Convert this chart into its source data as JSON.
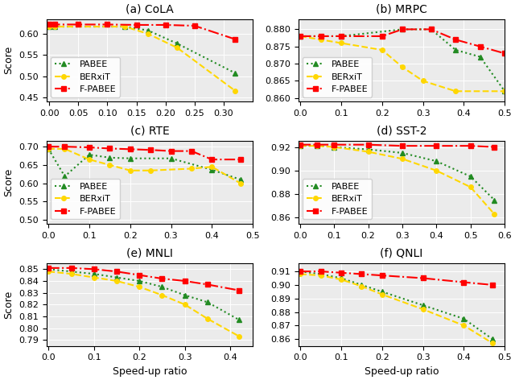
{
  "subplots": [
    {
      "title": "(a) CoLA",
      "xlim": [
        -0.005,
        0.35
      ],
      "ylim": [
        0.44,
        0.635
      ],
      "xticks": [
        0.0,
        0.05,
        0.1,
        0.15,
        0.2,
        0.25,
        0.3
      ],
      "yticks": [
        0.45,
        0.5,
        0.55,
        0.6
      ],
      "ylabel": "Score",
      "show_legend": true,
      "xlabel": null,
      "pabee_x": [
        0.0,
        0.01,
        0.13,
        0.17,
        0.22,
        0.32
      ],
      "pabee_y": [
        0.618,
        0.617,
        0.617,
        0.608,
        0.577,
        0.507
      ],
      "berxit_x": [
        0.0,
        0.01,
        0.13,
        0.17,
        0.22,
        0.32
      ],
      "berxit_y": [
        0.618,
        0.617,
        0.617,
        0.6,
        0.567,
        0.465
      ],
      "fpabee_x": [
        0.0,
        0.01,
        0.05,
        0.1,
        0.15,
        0.2,
        0.25,
        0.32
      ],
      "fpabee_y": [
        0.622,
        0.622,
        0.622,
        0.622,
        0.621,
        0.621,
        0.619,
        0.587
      ]
    },
    {
      "title": "(b) MRPC",
      "xlim": [
        -0.005,
        0.5
      ],
      "ylim": [
        0.859,
        0.883
      ],
      "xticks": [
        0.0,
        0.1,
        0.2,
        0.3,
        0.4,
        0.5
      ],
      "yticks": [
        0.86,
        0.865,
        0.87,
        0.875,
        0.88
      ],
      "ylabel": null,
      "show_legend": true,
      "xlabel": null,
      "pabee_x": [
        0.0,
        0.05,
        0.1,
        0.25,
        0.32,
        0.38,
        0.44,
        0.5
      ],
      "pabee_y": [
        0.878,
        0.878,
        0.878,
        0.88,
        0.88,
        0.874,
        0.872,
        0.862
      ],
      "berxit_x": [
        0.0,
        0.05,
        0.1,
        0.2,
        0.25,
        0.3,
        0.38,
        0.5
      ],
      "berxit_y": [
        0.878,
        0.877,
        0.876,
        0.874,
        0.869,
        0.865,
        0.862,
        0.862
      ],
      "fpabee_x": [
        0.0,
        0.05,
        0.1,
        0.2,
        0.25,
        0.32,
        0.38,
        0.44,
        0.5
      ],
      "fpabee_y": [
        0.878,
        0.878,
        0.878,
        0.878,
        0.88,
        0.88,
        0.877,
        0.875,
        0.873
      ]
    },
    {
      "title": "(c) RTE",
      "xlim": [
        -0.005,
        0.5
      ],
      "ylim": [
        0.49,
        0.715
      ],
      "xticks": [
        0.0,
        0.1,
        0.2,
        0.3,
        0.4,
        0.5
      ],
      "yticks": [
        0.5,
        0.55,
        0.6,
        0.65,
        0.7
      ],
      "ylabel": "Score",
      "show_legend": true,
      "xlabel": null,
      "pabee_x": [
        0.0,
        0.04,
        0.1,
        0.15,
        0.2,
        0.3,
        0.4,
        0.47
      ],
      "pabee_y": [
        0.694,
        0.619,
        0.678,
        0.67,
        0.668,
        0.668,
        0.637,
        0.61
      ],
      "berxit_x": [
        0.0,
        0.04,
        0.1,
        0.15,
        0.2,
        0.25,
        0.35,
        0.4,
        0.47
      ],
      "berxit_y": [
        0.694,
        0.694,
        0.665,
        0.65,
        0.635,
        0.635,
        0.64,
        0.645,
        0.6
      ],
      "fpabee_x": [
        0.0,
        0.04,
        0.1,
        0.15,
        0.2,
        0.25,
        0.3,
        0.35,
        0.4,
        0.47
      ],
      "fpabee_y": [
        0.7,
        0.7,
        0.698,
        0.695,
        0.693,
        0.691,
        0.688,
        0.688,
        0.665,
        0.665
      ]
    },
    {
      "title": "(d) SST-2",
      "xlim": [
        -0.005,
        0.6
      ],
      "ylim": [
        0.855,
        0.925
      ],
      "xticks": [
        0.0,
        0.1,
        0.2,
        0.3,
        0.4,
        0.5,
        0.6
      ],
      "yticks": [
        0.86,
        0.88,
        0.9,
        0.92
      ],
      "ylabel": null,
      "show_legend": true,
      "xlabel": null,
      "pabee_x": [
        0.0,
        0.05,
        0.1,
        0.2,
        0.3,
        0.4,
        0.5,
        0.57
      ],
      "pabee_y": [
        0.921,
        0.921,
        0.92,
        0.918,
        0.915,
        0.908,
        0.895,
        0.875
      ],
      "berxit_x": [
        0.0,
        0.05,
        0.1,
        0.2,
        0.3,
        0.4,
        0.5,
        0.57
      ],
      "berxit_y": [
        0.921,
        0.921,
        0.92,
        0.916,
        0.91,
        0.9,
        0.886,
        0.863
      ],
      "fpabee_x": [
        0.0,
        0.05,
        0.1,
        0.2,
        0.3,
        0.4,
        0.5,
        0.57
      ],
      "fpabee_y": [
        0.922,
        0.922,
        0.922,
        0.922,
        0.921,
        0.921,
        0.921,
        0.92
      ]
    },
    {
      "title": "(e) MNLI",
      "xlim": [
        -0.005,
        0.45
      ],
      "ylim": [
        0.785,
        0.855
      ],
      "xticks": [
        0.0,
        0.1,
        0.2,
        0.3,
        0.4
      ],
      "yticks": [
        0.79,
        0.8,
        0.81,
        0.82,
        0.83,
        0.84,
        0.85
      ],
      "ylabel": "Score",
      "show_legend": false,
      "xlabel": "Speed-up ratio",
      "pabee_x": [
        0.0,
        0.05,
        0.1,
        0.15,
        0.2,
        0.25,
        0.3,
        0.35,
        0.42
      ],
      "pabee_y": [
        0.85,
        0.848,
        0.846,
        0.843,
        0.84,
        0.835,
        0.828,
        0.822,
        0.807
      ],
      "berxit_x": [
        0.0,
        0.05,
        0.1,
        0.15,
        0.2,
        0.25,
        0.3,
        0.35,
        0.42
      ],
      "berxit_y": [
        0.848,
        0.846,
        0.843,
        0.84,
        0.835,
        0.828,
        0.82,
        0.808,
        0.793
      ],
      "fpabee_x": [
        0.0,
        0.05,
        0.1,
        0.15,
        0.2,
        0.25,
        0.3,
        0.35,
        0.42
      ],
      "fpabee_y": [
        0.851,
        0.851,
        0.85,
        0.848,
        0.845,
        0.842,
        0.84,
        0.837,
        0.832
      ]
    },
    {
      "title": "(f) QNLI",
      "xlim": [
        -0.005,
        0.5
      ],
      "ylim": [
        0.855,
        0.916
      ],
      "xticks": [
        0.0,
        0.1,
        0.2,
        0.3,
        0.4,
        0.5
      ],
      "yticks": [
        0.86,
        0.87,
        0.88,
        0.89,
        0.9,
        0.91
      ],
      "ylabel": null,
      "show_legend": false,
      "xlabel": "Speed-up ratio",
      "pabee_x": [
        0.0,
        0.05,
        0.1,
        0.15,
        0.2,
        0.3,
        0.4,
        0.47
      ],
      "pabee_y": [
        0.91,
        0.908,
        0.905,
        0.9,
        0.895,
        0.885,
        0.875,
        0.86
      ],
      "berxit_x": [
        0.0,
        0.05,
        0.1,
        0.15,
        0.2,
        0.3,
        0.4,
        0.47
      ],
      "berxit_y": [
        0.908,
        0.907,
        0.904,
        0.899,
        0.893,
        0.882,
        0.87,
        0.857
      ],
      "fpabee_x": [
        0.0,
        0.05,
        0.1,
        0.15,
        0.2,
        0.3,
        0.4,
        0.47
      ],
      "fpabee_y": [
        0.91,
        0.91,
        0.909,
        0.908,
        0.907,
        0.905,
        0.902,
        0.9
      ]
    }
  ],
  "pabee_color": "#228B22",
  "berxit_color": "#FFD700",
  "fpabee_color": "#FF0000",
  "pabee_marker": "^",
  "berxit_marker": "o",
  "fpabee_marker": "s",
  "pabee_style": "dotted",
  "berxit_style": "dashed",
  "fpabee_style": "dashdot",
  "linewidth": 1.5,
  "markersize": 4,
  "fontsize_title": 10,
  "fontsize_tick": 8,
  "fontsize_label": 9,
  "fontsize_legend": 8,
  "bg_color": "#ebebeb"
}
